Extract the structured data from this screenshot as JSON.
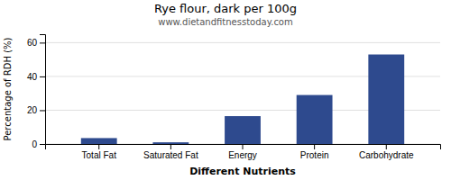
{
  "chart_data": {
    "type": "bar",
    "title": "Rye flour, dark per 100g",
    "subtitle": "www.dietandfitnesstoday.com",
    "categories": [
      "Total Fat",
      "Saturated Fat",
      "Energy",
      "Protein",
      "Carbohydrate"
    ],
    "values": [
      3.5,
      1.0,
      16.5,
      29.0,
      53.0
    ],
    "color": "#2e4a8e",
    "xlabel": "Different Nutrients",
    "ylabel": "Percentage of RDH (%)",
    "ylim": [
      0,
      65
    ],
    "yticks": [
      0,
      20,
      40,
      60
    ],
    "grid": true
  }
}
